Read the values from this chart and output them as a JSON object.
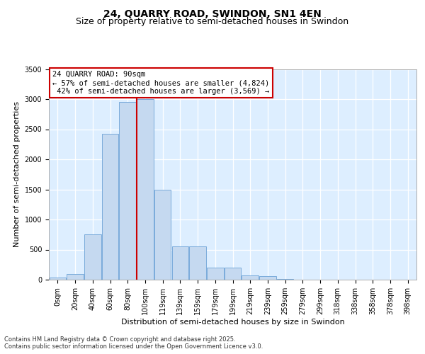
{
  "title": "24, QUARRY ROAD, SWINDON, SN1 4EN",
  "subtitle": "Size of property relative to semi-detached houses in Swindon",
  "xlabel": "Distribution of semi-detached houses by size in Swindon",
  "ylabel": "Number of semi-detached properties",
  "property_label": "24 QUARRY ROAD: 90sqm",
  "pct_smaller": 57,
  "pct_larger": 42,
  "count_smaller": 4824,
  "count_larger": 3569,
  "bar_categories": [
    "0sqm",
    "20sqm",
    "40sqm",
    "60sqm",
    "80sqm",
    "100sqm",
    "119sqm",
    "139sqm",
    "159sqm",
    "179sqm",
    "199sqm",
    "219sqm",
    "239sqm",
    "259sqm",
    "279sqm",
    "299sqm",
    "318sqm",
    "338sqm",
    "358sqm",
    "378sqm",
    "398sqm"
  ],
  "bar_values": [
    30,
    100,
    750,
    2420,
    2950,
    3000,
    1500,
    550,
    550,
    200,
    200,
    75,
    60,
    10,
    5,
    2,
    2,
    1,
    0,
    0,
    0
  ],
  "bar_color": "#c5d9f0",
  "bar_edge_color": "#7aabdb",
  "vline_color": "#cc0000",
  "vline_x": 4.5,
  "ylim": [
    0,
    3500
  ],
  "yticks": [
    0,
    500,
    1000,
    1500,
    2000,
    2500,
    3000,
    3500
  ],
  "background_color": "#ddeeff",
  "footer": "Contains HM Land Registry data © Crown copyright and database right 2025.\nContains public sector information licensed under the Open Government Licence v3.0.",
  "title_fontsize": 10,
  "subtitle_fontsize": 9,
  "axis_fontsize": 8,
  "tick_fontsize": 7
}
